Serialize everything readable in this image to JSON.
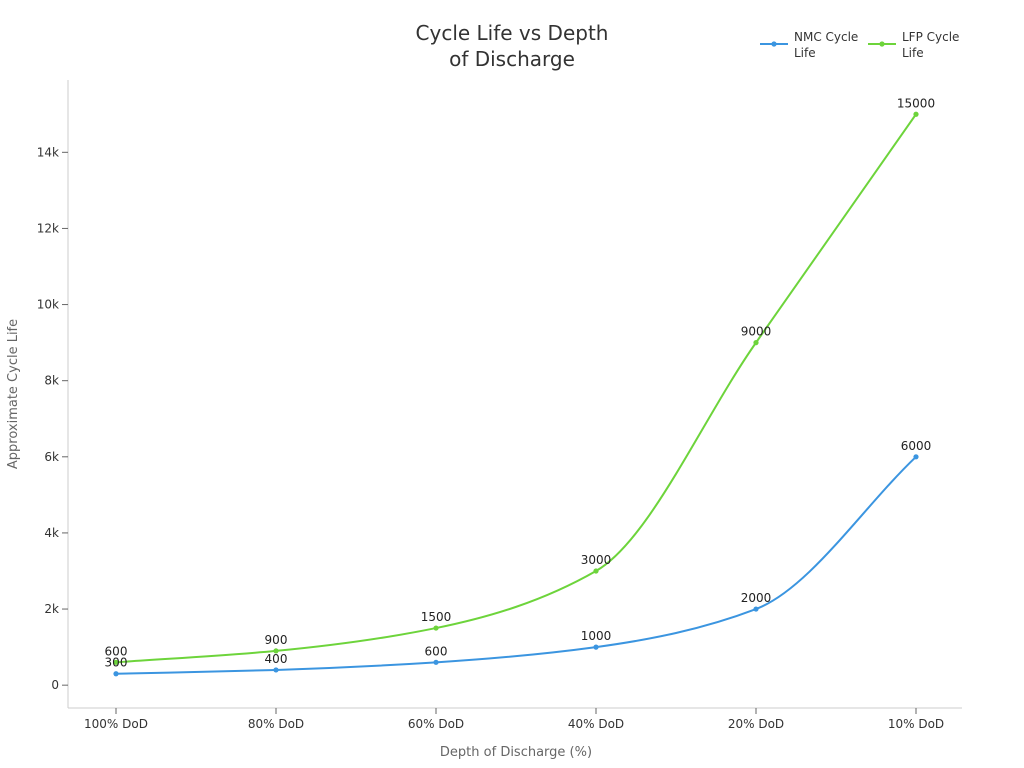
{
  "chart_data": {
    "type": "line",
    "title_lines": [
      "Cycle Life vs Depth",
      "of Discharge"
    ],
    "xlabel": "Depth of Discharge (%)",
    "ylabel": "Approximate Cycle Life",
    "categories": [
      "100% DoD",
      "80% DoD",
      "60% DoD",
      "40% DoD",
      "20% DoD",
      "10% DoD"
    ],
    "ylim": [
      -600,
      15900
    ],
    "yticks": [
      0,
      2000,
      4000,
      6000,
      8000,
      10000,
      12000,
      14000
    ],
    "ytick_labels": [
      "0",
      "2k",
      "4k",
      "6k",
      "8k",
      "10k",
      "12k",
      "14k"
    ],
    "grid": false,
    "legend_position": "top-right",
    "series": [
      {
        "key": "nmc",
        "name_lines": [
          "NMC Cycle",
          "Life"
        ],
        "color": "#3b95e0",
        "values": [
          300,
          400,
          600,
          1000,
          2000,
          6000
        ],
        "labels": [
          "300",
          "400",
          "600",
          "1000",
          "2000",
          "6000"
        ]
      },
      {
        "key": "lfp",
        "name_lines": [
          "LFP Cycle",
          "Life"
        ],
        "color": "#6dd43b",
        "values": [
          600,
          900,
          1500,
          3000,
          9000,
          15000
        ],
        "labels": [
          "600",
          "900",
          "1500",
          "3000",
          "9000",
          "15000"
        ]
      }
    ]
  }
}
